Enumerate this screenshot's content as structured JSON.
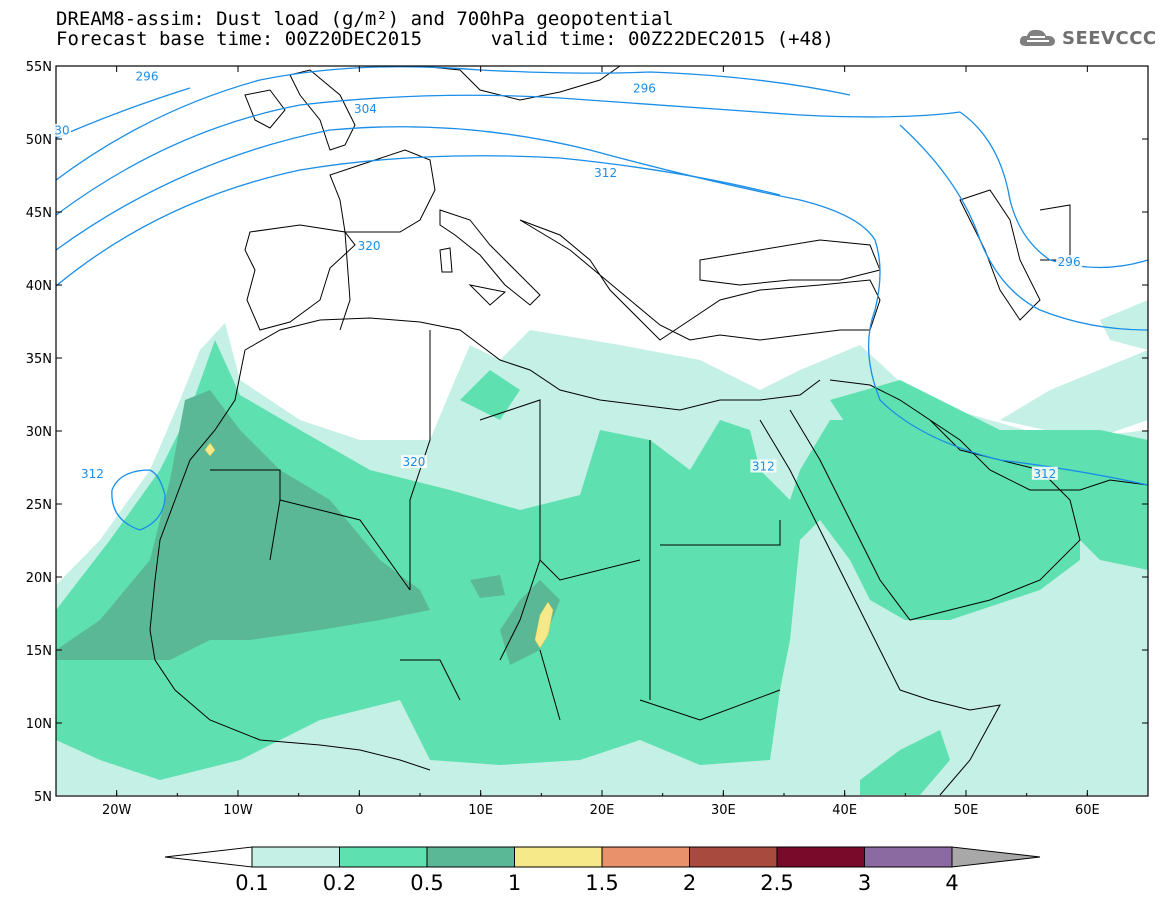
{
  "title": {
    "line1": "DREAM8-assim: Dust load (g/m²) and 700hPa geopotential",
    "base_time_label": "Forecast base time: 00Z20DEC2015",
    "valid_time_label": "valid time: 00Z22DEC2015 (+48)"
  },
  "logo": {
    "text": "SEEVCCC",
    "icon": "cloud-icon"
  },
  "axes": {
    "lat_labels": [
      "55N",
      "50N",
      "45N",
      "40N",
      "35N",
      "30N",
      "25N",
      "20N",
      "15N",
      "10N",
      "5N"
    ],
    "lon_labels": [
      "20W",
      "10W",
      "0",
      "10E",
      "20E",
      "30E",
      "40E",
      "50E",
      "60E"
    ],
    "lon_range": [
      -25,
      65
    ],
    "lat_range": [
      5,
      55
    ]
  },
  "colorbar": {
    "labels": [
      "0.1",
      "0.2",
      "0.5",
      "1",
      "1.5",
      "2",
      "2.5",
      "3",
      "4"
    ],
    "colors": [
      "#c5f0e6",
      "#5fe0b0",
      "#5ab896",
      "#f5e98a",
      "#e8916a",
      "#a84a3e",
      "#7a0a2a",
      "#8a6aa0",
      "#a8a8a8"
    ]
  },
  "contour_labels": [
    {
      "text": "296",
      "lon": -17.5,
      "lat": 54.2
    },
    {
      "text": "296",
      "lon": 23.5,
      "lat": 53.4
    },
    {
      "text": "304",
      "lon": 0.5,
      "lat": 52.0
    },
    {
      "text": "312",
      "lon": 20.3,
      "lat": 47.6
    },
    {
      "text": "320",
      "lon": 0.8,
      "lat": 42.6
    },
    {
      "text": "320",
      "lon": 4.5,
      "lat": 27.8
    },
    {
      "text": "312",
      "lon": -22.0,
      "lat": 27.0
    },
    {
      "text": "312",
      "lon": 33.3,
      "lat": 27.5
    },
    {
      "text": "312",
      "lon": 56.5,
      "lat": 27.0
    },
    {
      "text": "296",
      "lon": 58.5,
      "lat": 41.5
    },
    {
      "text": "30",
      "lon": -24.5,
      "lat": 50.5
    }
  ],
  "colors": {
    "contour": "#1a8ee8",
    "coast": "#000000",
    "land": "#ffffff"
  }
}
